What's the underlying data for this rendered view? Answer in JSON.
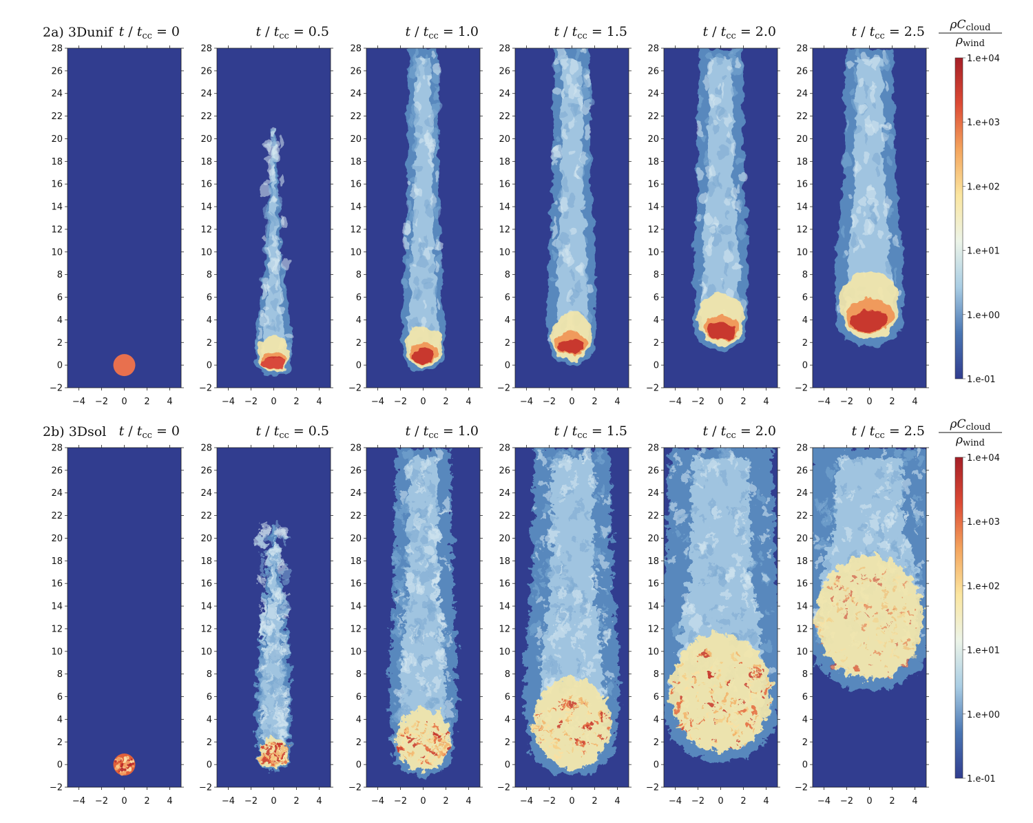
{
  "rows": [
    {
      "label": "2a)",
      "model": "3Dunif",
      "panels": [
        {
          "time_label": "0.5"
        }
      ]
    }
  ],
  "figure": {
    "rows": [
      {
        "label": "2a)",
        "model": "3Dunif",
        "times": [
          "0",
          "0.5",
          "1.0",
          "1.5",
          "2.0",
          "2.5"
        ],
        "cloud_texture": "smooth"
      },
      {
        "label": "2b)",
        "model": "3Dsol",
        "times": [
          "0",
          "0.5",
          "1.0",
          "1.5",
          "2.0",
          "2.5"
        ],
        "cloud_texture": "turbulent"
      }
    ],
    "time_symbol": "t",
    "time_sub_symbol": "t",
    "time_sub": "cc",
    "equals": "=",
    "y_ticks": [
      "28",
      "26",
      "24",
      "22",
      "20",
      "18",
      "16",
      "14",
      "12",
      "10",
      "8",
      "6",
      "4",
      "2",
      "0",
      "−2"
    ],
    "x_ticks": [
      "−4",
      "−2",
      "0",
      "2",
      "4"
    ],
    "y_range": [
      -2,
      28
    ],
    "x_range": [
      -5,
      5
    ],
    "colorbar": {
      "numerator": "ρC",
      "numerator_sub": "cloud",
      "denominator": "ρ",
      "denominator_sub": "wind",
      "ticks": [
        "1.e+04",
        "1.e+03",
        "1.e+02",
        "1.e+01",
        "1.e+00",
        "1.e-01"
      ],
      "scale": "log",
      "range": [
        0.1,
        10000
      ],
      "colors": [
        "#313d8f",
        "#4a76b3",
        "#a9cde4",
        "#ecf4e8",
        "#fbe6a0",
        "#f4a55e",
        "#dc4a35",
        "#a51f27"
      ]
    },
    "background_color": "#313d8f"
  }
}
